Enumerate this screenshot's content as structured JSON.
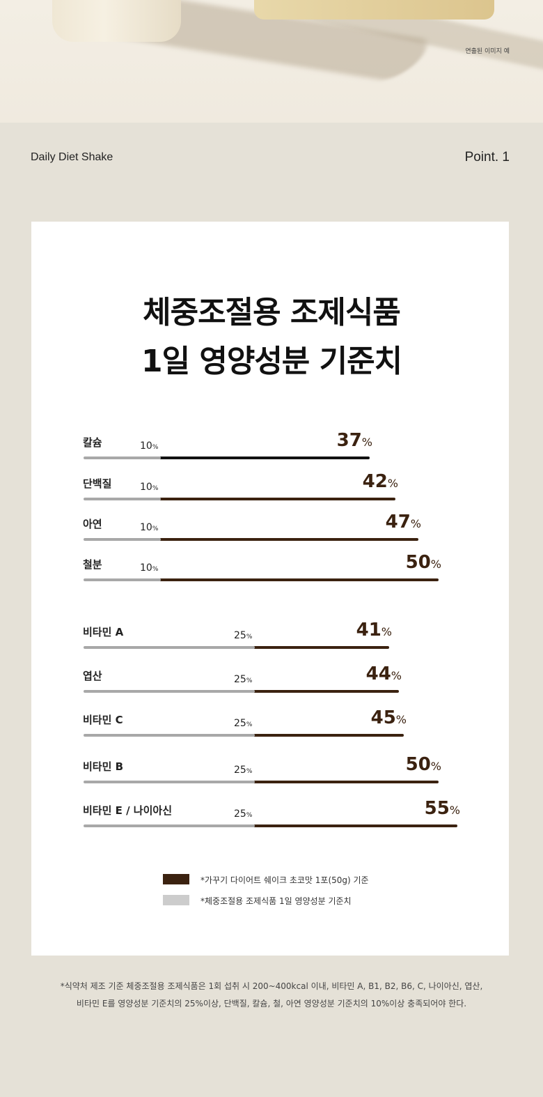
{
  "hero": {
    "note": "연출된 이미지 예"
  },
  "header": {
    "brand": "Daily Diet Shake",
    "point": "Point. 1"
  },
  "chart_data": {
    "type": "bar",
    "title": [
      "체중조절용 조제식품",
      "1일 영양성분 기준치"
    ],
    "unit": "%",
    "groups": [
      {
        "categories": [
          "칼슘",
          "단백질",
          "아연",
          "철분"
        ],
        "standard": [
          10,
          10,
          10,
          10
        ],
        "product": [
          37,
          42,
          47,
          50
        ]
      },
      {
        "categories": [
          "비타민 A",
          "엽산",
          "비타민 C",
          "비타민 B",
          "비타민 E / 나이아신"
        ],
        "standard": [
          25,
          25,
          25,
          25,
          25
        ],
        "product": [
          41,
          44,
          45,
          50,
          55
        ]
      }
    ],
    "series": [
      {
        "name": "*가꾸기 다이어트 쉐이크 초코맛 1포(50g) 기준",
        "color": "#3b2210"
      },
      {
        "name": "*체중조절용 조제식품 1일 영양성분 기준치",
        "color": "#cccccc"
      }
    ]
  },
  "footnote": [
    "*식약처 제조 기준 체중조절용 조제식품은 1회 섭취 시 200~400kcal 이내, 비타민 A, B1, B2, B6, C, 나이아신, 엽산,",
    "비타민 E를 영양성분 기준치의 25%이상, 단백질, 칼슘, 철, 아연 영양성분 기준치의 10%이상 충족되어야 한다."
  ]
}
